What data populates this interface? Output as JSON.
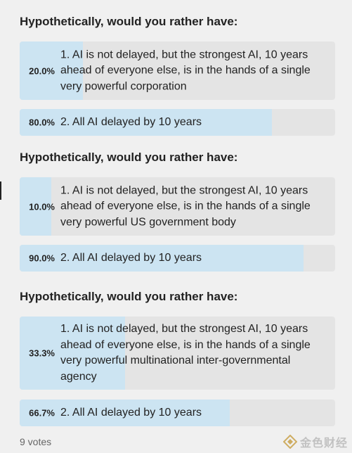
{
  "polls": [
    {
      "title": "Hypothetically, would you rather have:",
      "options": [
        {
          "percent_text": "20.0%",
          "percent": 20.0,
          "label": "1. AI is not delayed, but the strongest AI, 10 years ahead of everyone else, is in the hands of a single very powerful corporation"
        },
        {
          "percent_text": "80.0%",
          "percent": 80.0,
          "label": "2. All AI delayed by 10 years"
        }
      ]
    },
    {
      "title": "Hypothetically, would you rather have:",
      "options": [
        {
          "percent_text": "10.0%",
          "percent": 10.0,
          "label": "1. AI is not delayed, but the strongest AI, 10 years ahead of everyone else, is in the hands of a single very powerful US government body"
        },
        {
          "percent_text": "90.0%",
          "percent": 90.0,
          "label": "2. All AI delayed by 10 years"
        }
      ]
    },
    {
      "title": "Hypothetically, would you rather have:",
      "options": [
        {
          "percent_text": "33.3%",
          "percent": 33.3,
          "label": "1. AI is not delayed, but the strongest AI, 10 years ahead of everyone else, is in the hands of a single very powerful multinational inter-governmental agency"
        },
        {
          "percent_text": "66.7%",
          "percent": 66.7,
          "label": "2. All AI delayed by 10 years"
        }
      ]
    }
  ],
  "footer": {
    "votes": "9 votes"
  },
  "watermark": {
    "text": "金色财经",
    "icon": "diamond-logo-icon"
  },
  "colors": {
    "background": "#f0f0f0",
    "option_bg": "#e4e4e4",
    "fill": "#cce4f2",
    "text": "#222222"
  }
}
